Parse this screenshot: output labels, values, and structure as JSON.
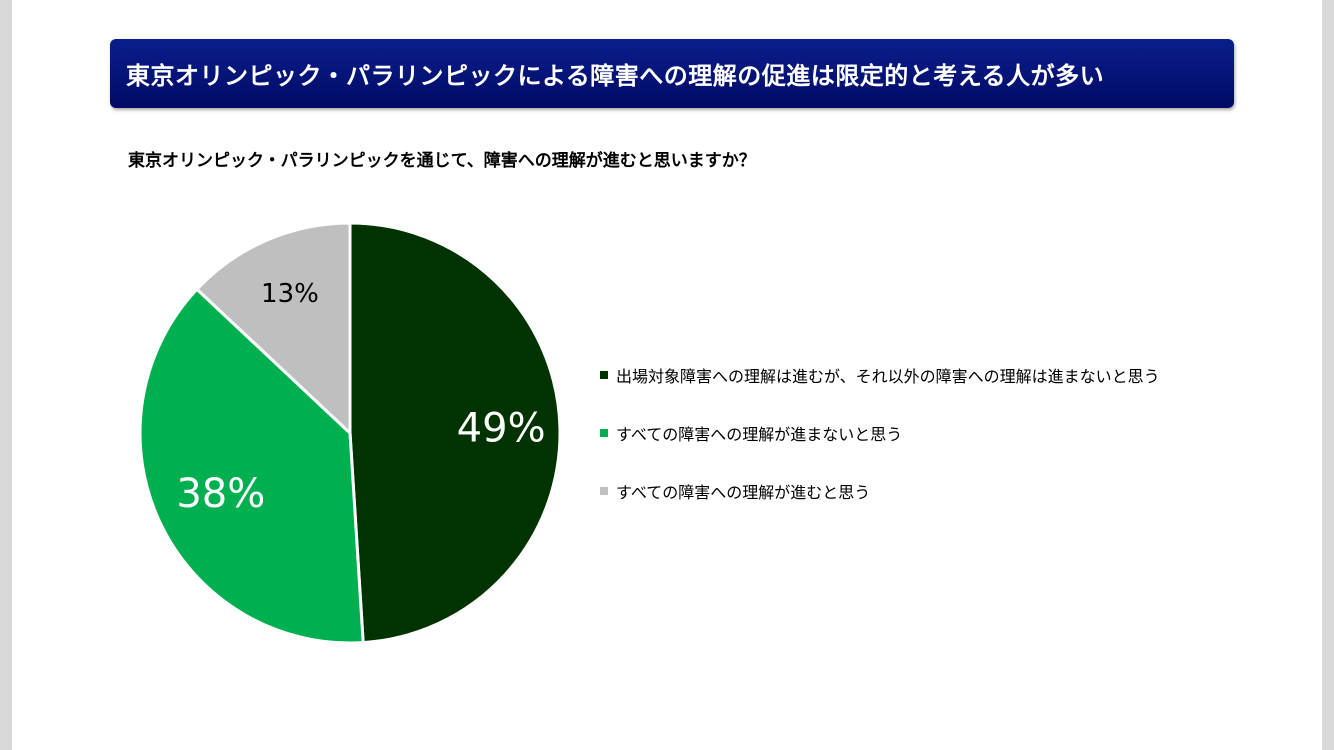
{
  "header": {
    "title": "東京オリンピック・パラリンピックによる障害への理解の促進は限定的と考える人が多い"
  },
  "question": "東京オリンピック・パラリンピックを通じて、障害への理解が進むと思いますか？",
  "chart_data": {
    "type": "pie",
    "categories": [
      "出場対象障害への理解は進むが、それ以外の障害への理解は進まないと思う",
      "すべての障害への理解が進まないと思う",
      "すべての障害への理解が進むと思う"
    ],
    "values": [
      49,
      38,
      13
    ],
    "data_labels": [
      "49%",
      "38%",
      "13%"
    ],
    "colors": [
      "#003300",
      "#00b050",
      "#bfbfbf"
    ],
    "label_colors": [
      "#ffffff",
      "#ffffff",
      "#000000"
    ],
    "legend_position": "right",
    "start_angle": "12 o'clock, clockwise"
  }
}
